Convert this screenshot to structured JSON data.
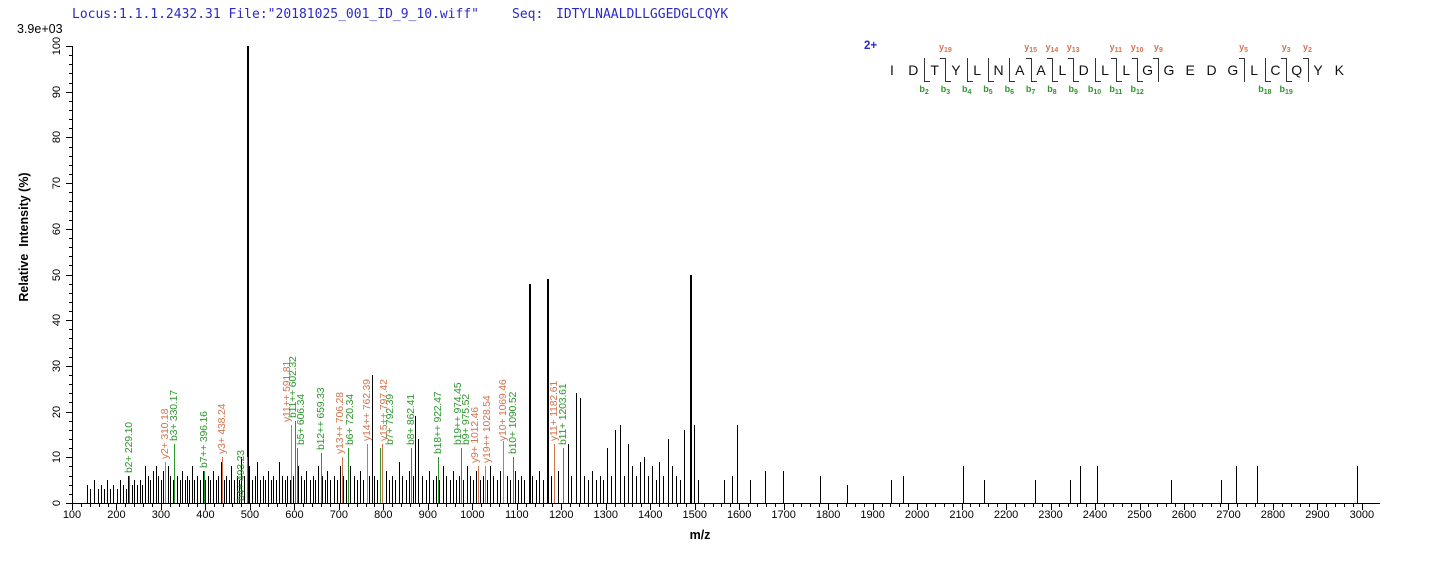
{
  "header": {
    "locus_text": "Locus:1.1.1.2432.31 File:\"20181025_001_ID_9_10.wiff\"",
    "seq_label": "Seq:",
    "sequence": "IDTYLNAALDLLGGEDGLCQYK"
  },
  "colors": {
    "header_blue": "#2a2ac8",
    "b_ion_green": "#2d962d",
    "y_ion_orange": "#d2744e",
    "peak_black": "#000000"
  },
  "sequence_panel": {
    "charge_label": "2+",
    "residues": [
      "I",
      "D",
      "T",
      "Y",
      "L",
      "N",
      "A",
      "A",
      "L",
      "D",
      "L",
      "L",
      "G",
      "G",
      "E",
      "D",
      "G",
      "L",
      "C",
      "Q",
      "Y",
      "K"
    ],
    "y_ions": [
      {
        "num": 19,
        "after": 3
      },
      {
        "num": 15,
        "after": 7
      },
      {
        "num": 14,
        "after": 8
      },
      {
        "num": 13,
        "after": 9
      },
      {
        "num": 11,
        "after": 11
      },
      {
        "num": 10,
        "after": 12
      },
      {
        "num": 9,
        "after": 13
      },
      {
        "num": 5,
        "after": 17
      },
      {
        "num": 3,
        "after": 19
      },
      {
        "num": 2,
        "after": 20
      }
    ],
    "b_ions": [
      {
        "num": 2,
        "after": 2
      },
      {
        "num": 3,
        "after": 3
      },
      {
        "num": 4,
        "after": 4
      },
      {
        "num": 5,
        "after": 5
      },
      {
        "num": 6,
        "after": 6
      },
      {
        "num": 7,
        "after": 7
      },
      {
        "num": 8,
        "after": 8
      },
      {
        "num": 9,
        "after": 9
      },
      {
        "num": 10,
        "after": 10
      },
      {
        "num": 11,
        "after": 11
      },
      {
        "num": 12,
        "after": 12
      },
      {
        "num": 18,
        "after": 18
      },
      {
        "num": 19,
        "after": 19
      }
    ]
  },
  "chart_data": {
    "type": "bar",
    "subtype": "centroided MS/MS peptide fragmentation spectrum",
    "title": "",
    "xlabel": "m/z",
    "ylabel": "Relative  Intensity (%)",
    "scale_note": "3.9e+03",
    "xlim": [
      100,
      3000
    ],
    "ylim": [
      0,
      100
    ],
    "x_axis": {
      "major_step": 100,
      "minor_step": 20
    },
    "y_axis": {
      "major_step": 10,
      "minor_step": 2
    },
    "legend": "green = b ions, orange = y ions, black = unassigned",
    "labeled_peaks": [
      {
        "label": "b2+ 229.10",
        "ion": "b",
        "mz": 229.1,
        "intensity_pct": 6
      },
      {
        "label": "y2+ 310.18",
        "ion": "y",
        "mz": 310.18,
        "intensity_pct": 9
      },
      {
        "label": "b3+ 330.17",
        "ion": "b",
        "mz": 330.17,
        "intensity_pct": 13
      },
      {
        "label": "b7++ 396.16",
        "ion": "b",
        "mz": 396.16,
        "intensity_pct": 7
      },
      {
        "label": "y3+ 438.24",
        "ion": "y",
        "mz": 438.24,
        "intensity_pct": 10
      },
      {
        "label": "b4+ 493.23",
        "ion": "b",
        "mz": 493.23,
        "intensity_pct": 10,
        "dx": -11,
        "bottom_pct": 0.5
      },
      {
        "label": "y11++ 591.81",
        "ion": "y",
        "mz": 591.81,
        "intensity_pct": 17,
        "dx": -9
      },
      {
        "label": "b11++ 602.32",
        "ion": "b",
        "mz": 602.32,
        "intensity_pct": 18,
        "dx": -7
      },
      {
        "label": "b5+ 606.34",
        "ion": "b",
        "mz": 606.34,
        "intensity_pct": 12,
        "dx": -1
      },
      {
        "label": "b12++ 659.33",
        "ion": "b",
        "mz": 659.33,
        "intensity_pct": 11
      },
      {
        "label": "y13++ 706.28",
        "ion": "y",
        "mz": 706.28,
        "intensity_pct": 10,
        "dx": -7
      },
      {
        "label": "b6+ 720.34",
        "ion": "b",
        "mz": 720.34,
        "intensity_pct": 12,
        "dx": -3
      },
      {
        "label": "y14++ 762.39",
        "ion": "y",
        "mz": 762.39,
        "intensity_pct": 13
      },
      {
        "label": "b7+ 792.39",
        "ion": "b",
        "mz": 792.39,
        "intensity_pct": 12,
        "dx": 5
      },
      {
        "label": "y15++ 797.42",
        "ion": "y",
        "mz": 797.42,
        "intensity_pct": 13,
        "dx": -3
      },
      {
        "label": "b8+ 862.41",
        "ion": "b",
        "mz": 862.41,
        "intensity_pct": 12
      },
      {
        "label": "b18++ 922.47",
        "ion": "b",
        "mz": 922.47,
        "intensity_pct": 10
      },
      {
        "label": "b19++ 974.45",
        "ion": "b",
        "mz": 974.45,
        "intensity_pct": 12,
        "dx": -8
      },
      {
        "label": "b9+ 975.52",
        "ion": "b",
        "mz": 975.52,
        "intensity_pct": 12,
        "dx": 0
      },
      {
        "label": "y9+ 1012.46",
        "ion": "y",
        "mz": 1012.46,
        "intensity_pct": 8,
        "dx": -8
      },
      {
        "label": "y19++ 1028.54",
        "ion": "y",
        "mz": 1028.54,
        "intensity_pct": 8,
        "dx": -3
      },
      {
        "label": "y10+ 1069.46",
        "ion": "y",
        "mz": 1069.46,
        "intensity_pct": 7,
        "lift": 30
      },
      {
        "label": "b10+ 1090.52",
        "ion": "b",
        "mz": 1090.52,
        "intensity_pct": 10
      },
      {
        "label": "y11+ 1182.61",
        "ion": "y",
        "mz": 1182.61,
        "intensity_pct": 13
      },
      {
        "label": "b11+ 1203.61",
        "ion": "b",
        "mz": 1203.61,
        "intensity_pct": 12
      }
    ],
    "unlabeled_peaks": [
      [
        134,
        4
      ],
      [
        141,
        3
      ],
      [
        150,
        5
      ],
      [
        158,
        3
      ],
      [
        166,
        4
      ],
      [
        172,
        3
      ],
      [
        178,
        5
      ],
      [
        185,
        3
      ],
      [
        193,
        4
      ],
      [
        201,
        3
      ],
      [
        208,
        5
      ],
      [
        215,
        4
      ],
      [
        221,
        3
      ],
      [
        226,
        6
      ],
      [
        234,
        4
      ],
      [
        240,
        5
      ],
      [
        246,
        4
      ],
      [
        252,
        5
      ],
      [
        258,
        4
      ],
      [
        264,
        8
      ],
      [
        270,
        6
      ],
      [
        276,
        5
      ],
      [
        282,
        7
      ],
      [
        288,
        8
      ],
      [
        293,
        6
      ],
      [
        299,
        5
      ],
      [
        304,
        7
      ],
      [
        309,
        6
      ],
      [
        316,
        8
      ],
      [
        321,
        6
      ],
      [
        327,
        5
      ],
      [
        336,
        6
      ],
      [
        342,
        5
      ],
      [
        347,
        7
      ],
      [
        353,
        5
      ],
      [
        358,
        6
      ],
      [
        364,
        5
      ],
      [
        369,
        8
      ],
      [
        375,
        5
      ],
      [
        381,
        6
      ],
      [
        388,
        5
      ],
      [
        394,
        7
      ],
      [
        400,
        5
      ],
      [
        406,
        6
      ],
      [
        411,
        5
      ],
      [
        417,
        7
      ],
      [
        423,
        5
      ],
      [
        428,
        6
      ],
      [
        434,
        9
      ],
      [
        441,
        5
      ],
      [
        447,
        6
      ],
      [
        453,
        5
      ],
      [
        458,
        8
      ],
      [
        464,
        5
      ],
      [
        470,
        6
      ],
      [
        475,
        5
      ],
      [
        481,
        10
      ],
      [
        487,
        6
      ],
      [
        493.3,
        100
      ],
      [
        498,
        8
      ],
      [
        505,
        5
      ],
      [
        511,
        6
      ],
      [
        517,
        9
      ],
      [
        523,
        5
      ],
      [
        529,
        6
      ],
      [
        535,
        5
      ],
      [
        541,
        7
      ],
      [
        547,
        5
      ],
      [
        553,
        6
      ],
      [
        559,
        5
      ],
      [
        566,
        9
      ],
      [
        572,
        6
      ],
      [
        578,
        5
      ],
      [
        584,
        6
      ],
      [
        590,
        5
      ],
      [
        596,
        6
      ],
      [
        608,
        8
      ],
      [
        614,
        6
      ],
      [
        621,
        5
      ],
      [
        627,
        7
      ],
      [
        634,
        5
      ],
      [
        641,
        6
      ],
      [
        647,
        5
      ],
      [
        654,
        8
      ],
      [
        661,
        6
      ],
      [
        668,
        5
      ],
      [
        674,
        7
      ],
      [
        681,
        5
      ],
      [
        688,
        6
      ],
      [
        695,
        5
      ],
      [
        702,
        8
      ],
      [
        709,
        6
      ],
      [
        716,
        5
      ],
      [
        726,
        8
      ],
      [
        733,
        6
      ],
      [
        740,
        5
      ],
      [
        747,
        7
      ],
      [
        754,
        5
      ],
      [
        768,
        6
      ],
      [
        774,
        28
      ],
      [
        780,
        6
      ],
      [
        786,
        5
      ],
      [
        805,
        7
      ],
      [
        812,
        5
      ],
      [
        819,
        6
      ],
      [
        827,
        5
      ],
      [
        835,
        9
      ],
      [
        842,
        6
      ],
      [
        850,
        5
      ],
      [
        857,
        7
      ],
      [
        866,
        6
      ],
      [
        872,
        19
      ],
      [
        879,
        14
      ],
      [
        887,
        6
      ],
      [
        895,
        5
      ],
      [
        903,
        7
      ],
      [
        911,
        5
      ],
      [
        918,
        6
      ],
      [
        926,
        5
      ],
      [
        934,
        8
      ],
      [
        941,
        6
      ],
      [
        949,
        5
      ],
      [
        956,
        7
      ],
      [
        964,
        5
      ],
      [
        971,
        6
      ],
      [
        979,
        5
      ],
      [
        987,
        8
      ],
      [
        994,
        6
      ],
      [
        1002,
        5
      ],
      [
        1009,
        7
      ],
      [
        1017,
        5
      ],
      [
        1024,
        6
      ],
      [
        1032,
        5
      ],
      [
        1040,
        8
      ],
      [
        1047,
        6
      ],
      [
        1055,
        5
      ],
      [
        1062,
        7
      ],
      [
        1077,
        6
      ],
      [
        1084,
        5
      ],
      [
        1095,
        7
      ],
      [
        1102,
        5
      ],
      [
        1109,
        6
      ],
      [
        1117,
        5
      ],
      [
        1127,
        48
      ],
      [
        1135,
        6
      ],
      [
        1143,
        5
      ],
      [
        1151,
        7
      ],
      [
        1159,
        5
      ],
      [
        1168,
        49
      ],
      [
        1176,
        6
      ],
      [
        1184,
        5
      ],
      [
        1192,
        7
      ],
      [
        1214,
        13
      ],
      [
        1222,
        6
      ],
      [
        1232,
        24
      ],
      [
        1242,
        23
      ],
      [
        1251,
        6
      ],
      [
        1260,
        5
      ],
      [
        1269,
        7
      ],
      [
        1277,
        5
      ],
      [
        1286,
        6
      ],
      [
        1294,
        5
      ],
      [
        1303,
        12
      ],
      [
        1311,
        6
      ],
      [
        1320,
        16
      ],
      [
        1331,
        17
      ],
      [
        1340,
        6
      ],
      [
        1349,
        13
      ],
      [
        1358,
        8
      ],
      [
        1367,
        6
      ],
      [
        1376,
        9
      ],
      [
        1385,
        10
      ],
      [
        1394,
        6
      ],
      [
        1403,
        8
      ],
      [
        1412,
        5
      ],
      [
        1420,
        9
      ],
      [
        1429,
        6
      ],
      [
        1440,
        14
      ],
      [
        1448,
        8
      ],
      [
        1457,
        6
      ],
      [
        1466,
        5
      ],
      [
        1475,
        16
      ],
      [
        1490,
        50
      ],
      [
        1498,
        17
      ],
      [
        1508,
        5
      ],
      [
        1566,
        5
      ],
      [
        1584,
        6
      ],
      [
        1595,
        17
      ],
      [
        1625,
        5
      ],
      [
        1658,
        7
      ],
      [
        1698,
        7
      ],
      [
        1782,
        6
      ],
      [
        1843,
        4
      ],
      [
        1941,
        5
      ],
      [
        1968,
        6
      ],
      [
        2103,
        8
      ],
      [
        2150,
        5
      ],
      [
        2265,
        5
      ],
      [
        2343,
        5
      ],
      [
        2366,
        8
      ],
      [
        2404,
        8
      ],
      [
        2571,
        5
      ],
      [
        2683,
        5
      ],
      [
        2717,
        8
      ],
      [
        2764,
        8
      ],
      [
        2989,
        8
      ]
    ]
  }
}
